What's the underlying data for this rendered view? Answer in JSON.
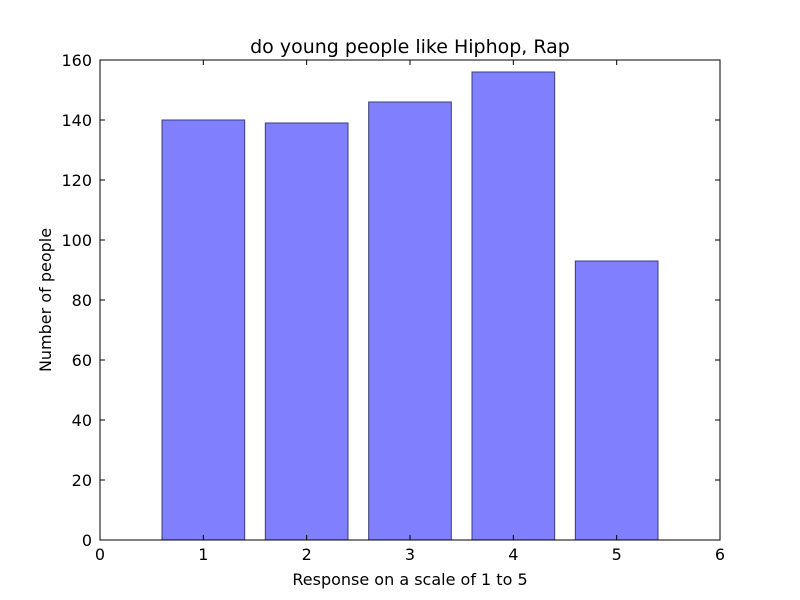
{
  "chart_data": {
    "type": "bar",
    "title": "do young people like Hiphop, Rap",
    "xlabel": "Response on a scale of 1 to 5",
    "ylabel": "Number of people",
    "categories": [
      1,
      2,
      3,
      4,
      5
    ],
    "values": [
      140,
      139,
      146,
      156,
      93
    ],
    "bar_width": 0.8,
    "xlim": [
      0,
      6
    ],
    "ylim": [
      0,
      160
    ],
    "xticks": [
      "0",
      "1",
      "2",
      "3",
      "4",
      "5",
      "6"
    ],
    "yticks": [
      "0",
      "20",
      "40",
      "60",
      "80",
      "100",
      "120",
      "140",
      "160"
    ],
    "grid": false,
    "bar_color": "#8080ff",
    "bar_edge_color": "#3d3d7a"
  }
}
